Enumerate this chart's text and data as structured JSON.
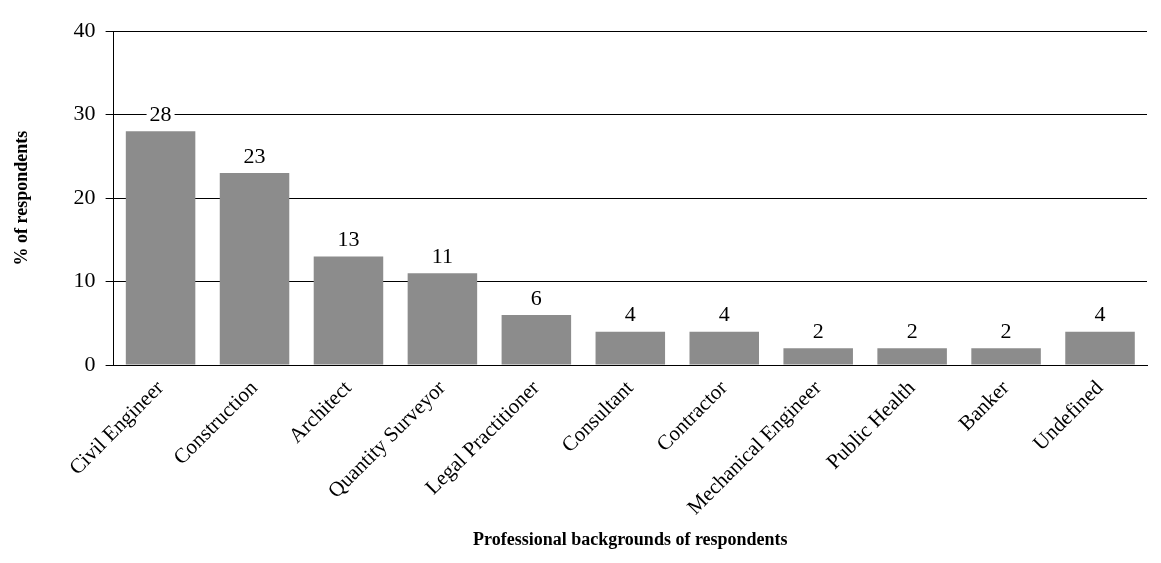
{
  "chart_data": {
    "type": "bar",
    "xlabel": "Professional backgrounds of respondents",
    "ylabel": "% of respondents",
    "categories": [
      "Civil Engineer",
      "Construction",
      "Architect",
      "Quantity Surveyor",
      "Legal Practitioner",
      "Consultant",
      "Contractor",
      "Mechanical Engineer",
      "Public Health",
      "Banker",
      "Undefined"
    ],
    "values": [
      28,
      23,
      13,
      11,
      6,
      4,
      4,
      2,
      2,
      2,
      4
    ],
    "color": "#8c8c8c",
    "ylim": [
      0,
      40
    ],
    "yticks": [
      0,
      10,
      20,
      30,
      40
    ],
    "grid": "y",
    "legend": false,
    "data_labels": true
  }
}
